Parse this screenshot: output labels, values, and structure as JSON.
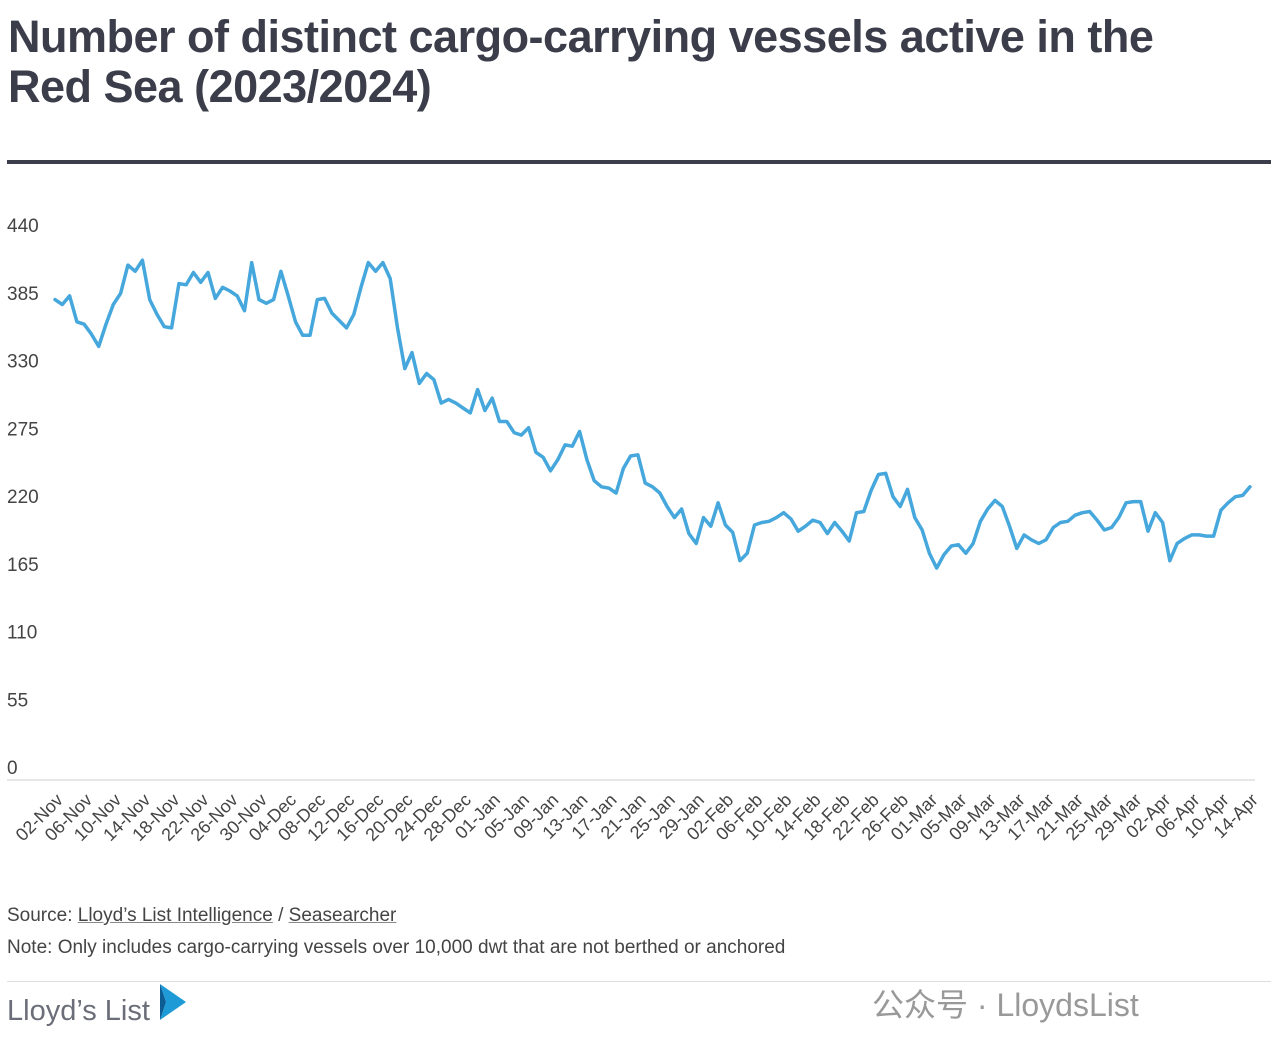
{
  "chart_data": {
    "type": "line",
    "title": "Number of distinct cargo-carrying vessels active in the Red Sea (2023/2024)",
    "categories": [
      "02-Nov",
      null,
      null,
      null,
      "06-Nov",
      null,
      null,
      null,
      "10-Nov",
      null,
      null,
      null,
      "14-Nov",
      null,
      null,
      null,
      "18-Nov",
      null,
      null,
      null,
      "22-Nov",
      null,
      null,
      null,
      "26-Nov",
      null,
      null,
      null,
      "30-Nov",
      null,
      null,
      null,
      "04-Dec",
      null,
      null,
      null,
      "08-Dec",
      null,
      null,
      null,
      "12-Dec",
      null,
      null,
      null,
      "16-Dec",
      null,
      null,
      null,
      "20-Dec",
      null,
      null,
      null,
      "24-Dec",
      null,
      null,
      null,
      "28-Dec",
      null,
      null,
      null,
      "01-Jan",
      null,
      null,
      null,
      "05-Jan",
      null,
      null,
      null,
      "09-Jan",
      null,
      null,
      null,
      "13-Jan",
      null,
      null,
      null,
      "17-Jan",
      null,
      null,
      null,
      "21-Jan",
      null,
      null,
      null,
      "25-Jan",
      null,
      null,
      null,
      "29-Jan",
      null,
      null,
      null,
      "02-Feb",
      null,
      null,
      null,
      "06-Feb",
      null,
      null,
      null,
      "10-Feb",
      null,
      null,
      null,
      "14-Feb",
      null,
      null,
      null,
      "18-Feb",
      null,
      null,
      null,
      "22-Feb",
      null,
      null,
      null,
      "26-Feb",
      null,
      null,
      null,
      "01-Mar",
      null,
      null,
      null,
      "05-Mar",
      null,
      null,
      null,
      "09-Mar",
      null,
      null,
      null,
      "13-Mar",
      null,
      null,
      null,
      "17-Mar",
      null,
      null,
      null,
      "21-Mar",
      null,
      null,
      null,
      "25-Mar",
      null,
      null,
      null,
      "29-Mar",
      null,
      null,
      null,
      "02-Apr",
      null,
      null,
      null,
      "06-Apr",
      null,
      null,
      null,
      "10-Apr",
      null,
      null,
      null,
      "14-Apr"
    ],
    "values": [
      390,
      386,
      393,
      372,
      370,
      362,
      352,
      370,
      386,
      395,
      418,
      413,
      422,
      390,
      378,
      368,
      367,
      403,
      402,
      412,
      404,
      412,
      391,
      400,
      397,
      393,
      381,
      420,
      390,
      387,
      390,
      413,
      393,
      372,
      361,
      361,
      390,
      391,
      379,
      373,
      367,
      378,
      400,
      420,
      413,
      420,
      407,
      367,
      334,
      347,
      322,
      330,
      325,
      306,
      309,
      306,
      302,
      298,
      317,
      300,
      310,
      291,
      291,
      282,
      280,
      286,
      266,
      262,
      251,
      260,
      272,
      271,
      283,
      260,
      243,
      238,
      237,
      233,
      253,
      263,
      264,
      241,
      238,
      233,
      222,
      213,
      220,
      200,
      192,
      213,
      206,
      225,
      207,
      201,
      178,
      184,
      207,
      209,
      210,
      213,
      217,
      212,
      202,
      206,
      211,
      209,
      200,
      209,
      202,
      194,
      217,
      218,
      235,
      248,
      249,
      230,
      222,
      236,
      213,
      203,
      184,
      172,
      183,
      190,
      191,
      184,
      192,
      210,
      220,
      227,
      222,
      206,
      188,
      199,
      195,
      192,
      195,
      205,
      209,
      210,
      215,
      217,
      218,
      211,
      203,
      205,
      213,
      225,
      226,
      226,
      202,
      217,
      209,
      178,
      192,
      196,
      199,
      199,
      198,
      198,
      219,
      225,
      230,
      231,
      238
    ],
    "color": "#45a7dc",
    "ylim": [
      0,
      440
    ],
    "yticks": [
      0,
      55,
      110,
      165,
      220,
      275,
      330,
      385,
      440
    ],
    "grid": false
  },
  "footer": {
    "source_label": "Source:",
    "source_links": [
      "Lloyd’s List Intelligence",
      "Seasearcher"
    ],
    "source_separator": "/",
    "note": "Note: Only includes cargo-carrying vessels over 10,000 dwt that are not berthed or anchored",
    "logo": "Lloyd’s List",
    "watermark": "公众号 · LloydsList"
  }
}
